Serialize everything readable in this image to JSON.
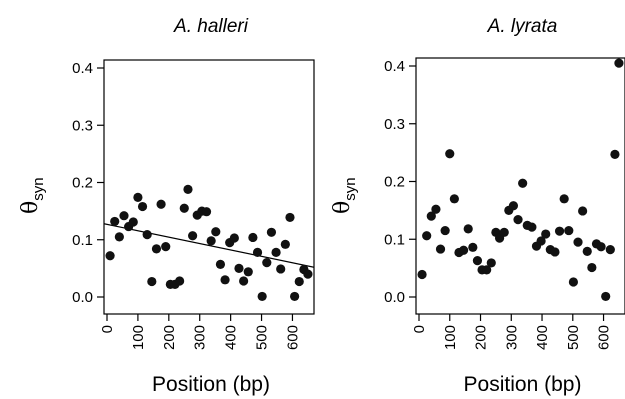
{
  "chart_data": [
    {
      "type": "scatter",
      "title": "A. halleri",
      "xlabel": "Position (bp)",
      "ylabel_symbol": "θ",
      "ylabel_subscript": "syn",
      "xlim": [
        0,
        660
      ],
      "ylim": [
        0,
        0.4
      ],
      "x_ticks": [
        0,
        100,
        200,
        300,
        400,
        500,
        600
      ],
      "y_ticks": [
        0.0,
        0.1,
        0.2,
        0.3,
        0.4
      ],
      "y_tick_labels": [
        "0.0",
        "0.1",
        "0.2",
        "0.3",
        "0.4"
      ],
      "points": [
        {
          "x": 10,
          "y": 0.072
        },
        {
          "x": 25,
          "y": 0.132
        },
        {
          "x": 40,
          "y": 0.105
        },
        {
          "x": 55,
          "y": 0.142
        },
        {
          "x": 70,
          "y": 0.123
        },
        {
          "x": 85,
          "y": 0.131
        },
        {
          "x": 100,
          "y": 0.174
        },
        {
          "x": 115,
          "y": 0.158
        },
        {
          "x": 130,
          "y": 0.109
        },
        {
          "x": 145,
          "y": 0.027
        },
        {
          "x": 160,
          "y": 0.084
        },
        {
          "x": 175,
          "y": 0.162
        },
        {
          "x": 190,
          "y": 0.088
        },
        {
          "x": 205,
          "y": 0.022
        },
        {
          "x": 220,
          "y": 0.022
        },
        {
          "x": 235,
          "y": 0.028
        },
        {
          "x": 250,
          "y": 0.155
        },
        {
          "x": 262,
          "y": 0.188
        },
        {
          "x": 277,
          "y": 0.107
        },
        {
          "x": 292,
          "y": 0.143
        },
        {
          "x": 307,
          "y": 0.15
        },
        {
          "x": 322,
          "y": 0.149
        },
        {
          "x": 337,
          "y": 0.098
        },
        {
          "x": 352,
          "y": 0.114
        },
        {
          "x": 367,
          "y": 0.057
        },
        {
          "x": 382,
          "y": 0.03
        },
        {
          "x": 397,
          "y": 0.095
        },
        {
          "x": 412,
          "y": 0.103
        },
        {
          "x": 427,
          "y": 0.05
        },
        {
          "x": 442,
          "y": 0.028
        },
        {
          "x": 457,
          "y": 0.044
        },
        {
          "x": 472,
          "y": 0.104
        },
        {
          "x": 487,
          "y": 0.078
        },
        {
          "x": 502,
          "y": 0.001
        },
        {
          "x": 517,
          "y": 0.06
        },
        {
          "x": 532,
          "y": 0.113
        },
        {
          "x": 547,
          "y": 0.078
        },
        {
          "x": 562,
          "y": 0.049
        },
        {
          "x": 577,
          "y": 0.092
        },
        {
          "x": 592,
          "y": 0.139
        },
        {
          "x": 607,
          "y": 0.001
        },
        {
          "x": 622,
          "y": 0.027
        },
        {
          "x": 637,
          "y": 0.048
        },
        {
          "x": 650,
          "y": 0.04
        }
      ],
      "trend_line": {
        "x": [
          0,
          660
        ],
        "y": [
          0.128,
          0.052
        ]
      }
    },
    {
      "type": "scatter",
      "title": "A. lyrata",
      "xlabel": "Position (bp)",
      "ylabel_symbol": "θ",
      "ylabel_subscript": "syn",
      "xlim": [
        0,
        660
      ],
      "ylim": [
        0,
        0.4
      ],
      "x_ticks": [
        0,
        100,
        200,
        300,
        400,
        500,
        600
      ],
      "y_ticks": [
        0.0,
        0.1,
        0.2,
        0.3,
        0.4
      ],
      "y_tick_labels": [
        "0.0",
        "0.1",
        "0.2",
        "0.3",
        "0.4"
      ],
      "points": [
        {
          "x": 10,
          "y": 0.039
        },
        {
          "x": 25,
          "y": 0.106
        },
        {
          "x": 40,
          "y": 0.14
        },
        {
          "x": 55,
          "y": 0.152
        },
        {
          "x": 70,
          "y": 0.083
        },
        {
          "x": 85,
          "y": 0.115
        },
        {
          "x": 100,
          "y": 0.248
        },
        {
          "x": 115,
          "y": 0.17
        },
        {
          "x": 130,
          "y": 0.077
        },
        {
          "x": 145,
          "y": 0.081
        },
        {
          "x": 160,
          "y": 0.118
        },
        {
          "x": 175,
          "y": 0.086
        },
        {
          "x": 190,
          "y": 0.063
        },
        {
          "x": 205,
          "y": 0.047
        },
        {
          "x": 220,
          "y": 0.047
        },
        {
          "x": 235,
          "y": 0.059
        },
        {
          "x": 250,
          "y": 0.112
        },
        {
          "x": 262,
          "y": 0.102
        },
        {
          "x": 277,
          "y": 0.112
        },
        {
          "x": 292,
          "y": 0.15
        },
        {
          "x": 307,
          "y": 0.158
        },
        {
          "x": 322,
          "y": 0.134
        },
        {
          "x": 337,
          "y": 0.197
        },
        {
          "x": 352,
          "y": 0.124
        },
        {
          "x": 367,
          "y": 0.121
        },
        {
          "x": 382,
          "y": 0.088
        },
        {
          "x": 397,
          "y": 0.097
        },
        {
          "x": 412,
          "y": 0.109
        },
        {
          "x": 427,
          "y": 0.082
        },
        {
          "x": 442,
          "y": 0.078
        },
        {
          "x": 457,
          "y": 0.114
        },
        {
          "x": 472,
          "y": 0.17
        },
        {
          "x": 487,
          "y": 0.115
        },
        {
          "x": 502,
          "y": 0.026
        },
        {
          "x": 517,
          "y": 0.095
        },
        {
          "x": 532,
          "y": 0.149
        },
        {
          "x": 547,
          "y": 0.079
        },
        {
          "x": 562,
          "y": 0.051
        },
        {
          "x": 577,
          "y": 0.092
        },
        {
          "x": 592,
          "y": 0.087
        },
        {
          "x": 607,
          "y": 0.001
        },
        {
          "x": 622,
          "y": 0.082
        },
        {
          "x": 637,
          "y": 0.247
        },
        {
          "x": 650,
          "y": 0.405
        }
      ]
    }
  ]
}
